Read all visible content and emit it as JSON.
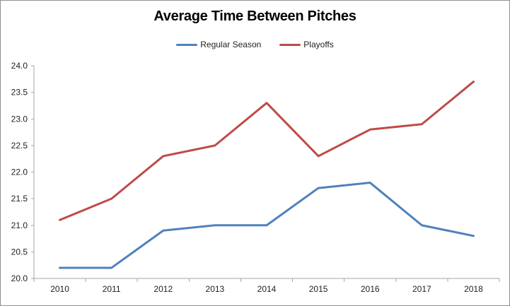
{
  "chart_data": {
    "type": "line",
    "title": "Average Time Between Pitches",
    "categories": [
      "2010",
      "2011",
      "2012",
      "2013",
      "2014",
      "2015",
      "2016",
      "2017",
      "2018"
    ],
    "series": [
      {
        "name": "Regular Season",
        "color": "#4F81BD",
        "values": [
          20.2,
          20.2,
          20.9,
          21.0,
          21.0,
          21.7,
          21.8,
          21.0,
          20.8
        ]
      },
      {
        "name": "Playoffs",
        "color": "#BE4B48",
        "values": [
          21.1,
          21.5,
          22.3,
          22.5,
          23.3,
          22.3,
          22.8,
          22.9,
          23.7
        ]
      }
    ],
    "xlabel": "",
    "ylabel": "",
    "ylim": [
      20.0,
      24.0
    ],
    "ytick_step": 0.5,
    "ytick_decimals": 1,
    "grid": false,
    "legend_position": "top"
  },
  "style": {
    "axis_color": "#A6A6A6",
    "text_color": "#1F1F1F",
    "border_color": "#8F8F8F",
    "background": "#FFFFFF"
  }
}
